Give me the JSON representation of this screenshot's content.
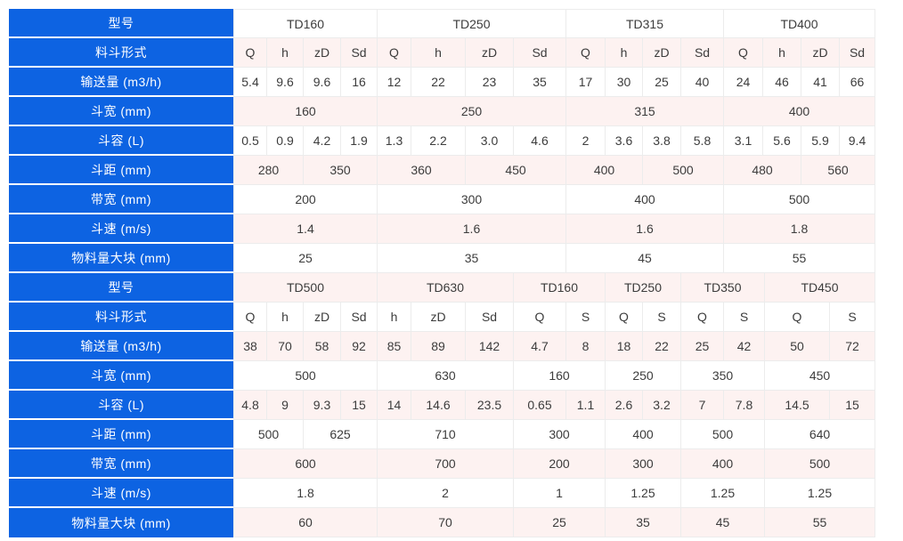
{
  "colors": {
    "header_bg": "#0d63e2",
    "header_text": "#ffffff",
    "row_bg": "#ffffff",
    "row_alt_bg": "#fdf2f1",
    "border": "#ececec",
    "text": "#3c3c3c"
  },
  "table": {
    "label_col_width": 252,
    "top_col_widths": [
      38,
      41,
      42,
      41,
      38,
      61,
      54,
      59,
      44,
      42,
      43,
      48,
      44,
      43,
      43,
      40
    ],
    "bottom_col_widths": [
      38,
      41,
      42,
      41,
      38,
      61,
      54,
      59,
      44,
      42,
      43,
      48,
      46,
      73,
      51
    ],
    "rows": [
      {
        "label": "型号",
        "section": "top",
        "cells": [
          {
            "t": "TD160",
            "s": 4
          },
          {
            "t": "TD250",
            "s": 4
          },
          {
            "t": "TD315",
            "s": 4
          },
          {
            "t": "TD400",
            "s": 4
          }
        ]
      },
      {
        "label": "料斗形式",
        "section": "top",
        "cells": [
          {
            "t": "Q",
            "s": 1
          },
          {
            "t": "h",
            "s": 1
          },
          {
            "t": "zD",
            "s": 1
          },
          {
            "t": "Sd",
            "s": 1
          },
          {
            "t": "Q",
            "s": 1
          },
          {
            "t": "h",
            "s": 1
          },
          {
            "t": "zD",
            "s": 1
          },
          {
            "t": "Sd",
            "s": 1
          },
          {
            "t": "Q",
            "s": 1
          },
          {
            "t": "h",
            "s": 1
          },
          {
            "t": "zD",
            "s": 1
          },
          {
            "t": "Sd",
            "s": 1
          },
          {
            "t": "Q",
            "s": 1
          },
          {
            "t": "h",
            "s": 1
          },
          {
            "t": "zD",
            "s": 1
          },
          {
            "t": "Sd",
            "s": 1
          }
        ]
      },
      {
        "label": "输送量 (m3/h)",
        "section": "top",
        "cells": [
          {
            "t": "5.4",
            "s": 1
          },
          {
            "t": "9.6",
            "s": 1
          },
          {
            "t": "9.6",
            "s": 1
          },
          {
            "t": "16",
            "s": 1
          },
          {
            "t": "12",
            "s": 1
          },
          {
            "t": "22",
            "s": 1
          },
          {
            "t": "23",
            "s": 1
          },
          {
            "t": "35",
            "s": 1
          },
          {
            "t": "17",
            "s": 1
          },
          {
            "t": "30",
            "s": 1
          },
          {
            "t": "25",
            "s": 1
          },
          {
            "t": "40",
            "s": 1
          },
          {
            "t": "24",
            "s": 1
          },
          {
            "t": "46",
            "s": 1
          },
          {
            "t": "41",
            "s": 1
          },
          {
            "t": "66",
            "s": 1
          }
        ]
      },
      {
        "label": "斗宽 (mm)",
        "section": "top",
        "cells": [
          {
            "t": "160",
            "s": 4
          },
          {
            "t": "250",
            "s": 4
          },
          {
            "t": "315",
            "s": 4
          },
          {
            "t": "400",
            "s": 4
          }
        ]
      },
      {
        "label": "斗容 (L)",
        "section": "top",
        "cells": [
          {
            "t": "0.5",
            "s": 1
          },
          {
            "t": "0.9",
            "s": 1
          },
          {
            "t": "4.2",
            "s": 1
          },
          {
            "t": "1.9",
            "s": 1
          },
          {
            "t": "1.3",
            "s": 1
          },
          {
            "t": "2.2",
            "s": 1
          },
          {
            "t": "3.0",
            "s": 1
          },
          {
            "t": "4.6",
            "s": 1
          },
          {
            "t": "2",
            "s": 1
          },
          {
            "t": "3.6",
            "s": 1
          },
          {
            "t": "3.8",
            "s": 1
          },
          {
            "t": "5.8",
            "s": 1
          },
          {
            "t": "3.1",
            "s": 1
          },
          {
            "t": "5.6",
            "s": 1
          },
          {
            "t": "5.9",
            "s": 1
          },
          {
            "t": "9.4",
            "s": 1
          }
        ]
      },
      {
        "label": "斗距 (mm)",
        "section": "top",
        "cells": [
          {
            "t": "280",
            "s": 2
          },
          {
            "t": "350",
            "s": 2
          },
          {
            "t": "360",
            "s": 2
          },
          {
            "t": "450",
            "s": 2
          },
          {
            "t": "400",
            "s": 2
          },
          {
            "t": "500",
            "s": 2
          },
          {
            "t": "480",
            "s": 2
          },
          {
            "t": "560",
            "s": 2
          }
        ]
      },
      {
        "label": "带宽 (mm)",
        "section": "top",
        "cells": [
          {
            "t": "200",
            "s": 4
          },
          {
            "t": "300",
            "s": 4
          },
          {
            "t": "400",
            "s": 4
          },
          {
            "t": "500",
            "s": 4
          }
        ]
      },
      {
        "label": "斗速 (m/s)",
        "section": "top",
        "cells": [
          {
            "t": "1.4",
            "s": 4
          },
          {
            "t": "1.6",
            "s": 4
          },
          {
            "t": "1.6",
            "s": 4
          },
          {
            "t": "1.8",
            "s": 4
          }
        ]
      },
      {
        "label": "物料量大块 (mm)",
        "section": "top",
        "cells": [
          {
            "t": "25",
            "s": 4
          },
          {
            "t": "35",
            "s": 4
          },
          {
            "t": "45",
            "s": 4
          },
          {
            "t": "55",
            "s": 4
          }
        ]
      },
      {
        "label": "型号",
        "section": "bottom",
        "cells": [
          {
            "t": "TD500",
            "s": 4
          },
          {
            "t": "TD630",
            "s": 3
          },
          {
            "t": "TD160",
            "s": 2
          },
          {
            "t": "TD250",
            "s": 2
          },
          {
            "t": "TD350",
            "s": 2
          },
          {
            "t": "TD450",
            "s": 2
          }
        ]
      },
      {
        "label": "料斗形式",
        "section": "bottom",
        "cells": [
          {
            "t": "Q",
            "s": 1
          },
          {
            "t": "h",
            "s": 1
          },
          {
            "t": "zD",
            "s": 1
          },
          {
            "t": "Sd",
            "s": 1
          },
          {
            "t": "h",
            "s": 1
          },
          {
            "t": "zD",
            "s": 1
          },
          {
            "t": "Sd",
            "s": 1
          },
          {
            "t": "Q",
            "s": 1
          },
          {
            "t": "S",
            "s": 1
          },
          {
            "t": "Q",
            "s": 1
          },
          {
            "t": "S",
            "s": 1
          },
          {
            "t": "Q",
            "s": 1
          },
          {
            "t": "S",
            "s": 1
          },
          {
            "t": "Q",
            "s": 1
          },
          {
            "t": "S",
            "s": 1
          }
        ]
      },
      {
        "label": "输送量 (m3/h)",
        "section": "bottom",
        "cells": [
          {
            "t": "38",
            "s": 1
          },
          {
            "t": "70",
            "s": 1
          },
          {
            "t": "58",
            "s": 1
          },
          {
            "t": "92",
            "s": 1
          },
          {
            "t": "85",
            "s": 1
          },
          {
            "t": "89",
            "s": 1
          },
          {
            "t": "142",
            "s": 1
          },
          {
            "t": "4.7",
            "s": 1
          },
          {
            "t": "8",
            "s": 1
          },
          {
            "t": "18",
            "s": 1
          },
          {
            "t": "22",
            "s": 1
          },
          {
            "t": "25",
            "s": 1
          },
          {
            "t": "42",
            "s": 1
          },
          {
            "t": "50",
            "s": 1
          },
          {
            "t": "72",
            "s": 1
          }
        ]
      },
      {
        "label": "斗宽 (mm)",
        "section": "bottom",
        "cells": [
          {
            "t": "500",
            "s": 4
          },
          {
            "t": "630",
            "s": 3
          },
          {
            "t": "160",
            "s": 2
          },
          {
            "t": "250",
            "s": 2
          },
          {
            "t": "350",
            "s": 2
          },
          {
            "t": "450",
            "s": 2
          }
        ]
      },
      {
        "label": "斗容 (L)",
        "section": "bottom",
        "cells": [
          {
            "t": "4.8",
            "s": 1
          },
          {
            "t": "9",
            "s": 1
          },
          {
            "t": "9.3",
            "s": 1
          },
          {
            "t": "15",
            "s": 1
          },
          {
            "t": "14",
            "s": 1
          },
          {
            "t": "14.6",
            "s": 1
          },
          {
            "t": "23.5",
            "s": 1
          },
          {
            "t": "0.65",
            "s": 1
          },
          {
            "t": "1.1",
            "s": 1
          },
          {
            "t": "2.6",
            "s": 1
          },
          {
            "t": "3.2",
            "s": 1
          },
          {
            "t": "7",
            "s": 1
          },
          {
            "t": "7.8",
            "s": 1
          },
          {
            "t": "14.5",
            "s": 1
          },
          {
            "t": "15",
            "s": 1
          }
        ]
      },
      {
        "label": "斗距 (mm)",
        "section": "bottom",
        "cells": [
          {
            "t": "500",
            "s": 2
          },
          {
            "t": "625",
            "s": 2
          },
          {
            "t": "710",
            "s": 3
          },
          {
            "t": "300",
            "s": 2
          },
          {
            "t": "400",
            "s": 2
          },
          {
            "t": "500",
            "s": 2
          },
          {
            "t": "640",
            "s": 2
          }
        ]
      },
      {
        "label": "带宽 (mm)",
        "section": "bottom",
        "cells": [
          {
            "t": "600",
            "s": 4
          },
          {
            "t": "700",
            "s": 3
          },
          {
            "t": "200",
            "s": 2
          },
          {
            "t": "300",
            "s": 2
          },
          {
            "t": "400",
            "s": 2
          },
          {
            "t": "500",
            "s": 2
          }
        ]
      },
      {
        "label": "斗速 (m/s)",
        "section": "bottom",
        "cells": [
          {
            "t": "1.8",
            "s": 4
          },
          {
            "t": "2",
            "s": 3
          },
          {
            "t": "1",
            "s": 2
          },
          {
            "t": "1.25",
            "s": 2
          },
          {
            "t": "1.25",
            "s": 2
          },
          {
            "t": "1.25",
            "s": 2
          }
        ]
      },
      {
        "label": "物料量大块 (mm)",
        "section": "bottom",
        "cells": [
          {
            "t": "60",
            "s": 4
          },
          {
            "t": "70",
            "s": 3
          },
          {
            "t": "25",
            "s": 2
          },
          {
            "t": "35",
            "s": 2
          },
          {
            "t": "45",
            "s": 2
          },
          {
            "t": "55",
            "s": 2
          }
        ]
      }
    ]
  }
}
